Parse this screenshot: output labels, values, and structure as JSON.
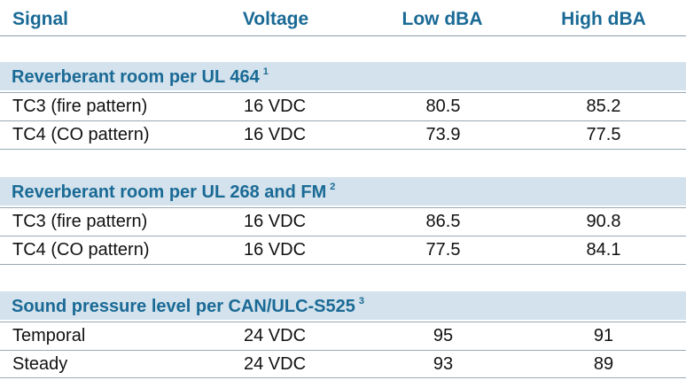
{
  "header": {
    "signal": "Signal",
    "voltage": "Voltage",
    "low": "Low dBA",
    "high": "High dBA"
  },
  "sections": [
    {
      "title": "Reverberant room per UL 464",
      "note": "1",
      "rows": [
        {
          "signal": "TC3 (fire pattern)",
          "voltage": "16 VDC",
          "low": "80.5",
          "high": "85.2"
        },
        {
          "signal": "TC4 (CO pattern)",
          "voltage": "16 VDC",
          "low": "73.9",
          "high": "77.5"
        }
      ]
    },
    {
      "title": "Reverberant room per UL 268 and FM",
      "note": "2",
      "rows": [
        {
          "signal": "TC3 (fire pattern)",
          "voltage": "16 VDC",
          "low": "86.5",
          "high": "90.8"
        },
        {
          "signal": "TC4 (CO pattern)",
          "voltage": "16 VDC",
          "low": "77.5",
          "high": "84.1"
        }
      ]
    },
    {
      "title": "Sound pressure level per CAN/ULC-S525",
      "note": "3",
      "rows": [
        {
          "signal": "Temporal",
          "voltage": "24 VDC",
          "low": "95",
          "high": "91"
        },
        {
          "signal": "Steady",
          "voltage": "24 VDC",
          "low": "93",
          "high": "89"
        }
      ]
    }
  ]
}
